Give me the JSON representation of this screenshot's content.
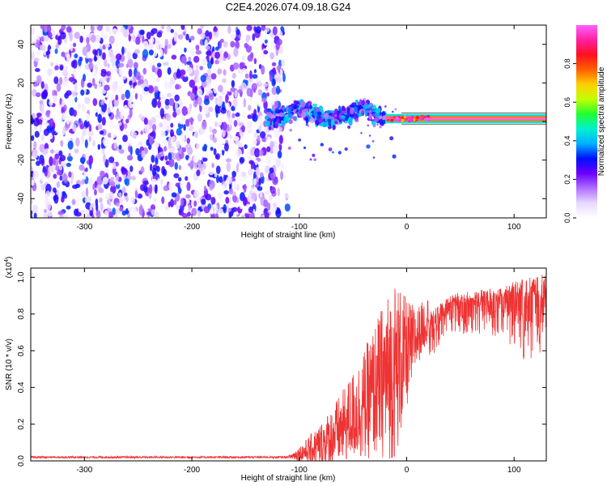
{
  "figure_title": "C2E4.2026.074.09.18.G24",
  "chart_data": [
    {
      "type": "heatmap",
      "xlabel": "Height of straight line (km)",
      "ylabel": "Frequency (Hz)",
      "xlim": [
        -350,
        130
      ],
      "ylim": [
        -50,
        50
      ],
      "x_ticks": [
        -300,
        -200,
        -100,
        0,
        100
      ],
      "y_ticks": [
        -40,
        -20,
        0,
        20,
        40
      ],
      "colorbar": {
        "label": "Normalized spectral amplitude",
        "range": [
          0,
          1
        ],
        "ticks": [
          0.0,
          0.2,
          0.4,
          0.6,
          0.8
        ],
        "colors": [
          "#ffffff",
          "#e8d8ff",
          "#b070ff",
          "#6a00ff",
          "#0010ff",
          "#00b0ff",
          "#00f0d0",
          "#20ff30",
          "#c0ff00",
          "#ffd000",
          "#ff6000",
          "#ff1020",
          "#ff20a0",
          "#ff60ff"
        ]
      },
      "regions": [
        {
          "name": "noise",
          "x_range": [
            -350,
            -115
          ],
          "freq_range": [
            -50,
            50
          ],
          "amplitude_range": [
            0.0,
            0.15
          ]
        },
        {
          "name": "signal_onset",
          "x_range": [
            -130,
            -20
          ],
          "freq_center": 2,
          "freq_spread": 8,
          "amplitude_range": [
            0.1,
            0.4
          ]
        },
        {
          "name": "stable_signal",
          "x_range": [
            -20,
            130
          ],
          "freq_center": 1.5,
          "freq_spread": 1.5,
          "amplitude_range": [
            0.8,
            1.0
          ]
        }
      ]
    },
    {
      "type": "line",
      "xlabel": "Height of straight line (km)",
      "ylabel": "SNR (10 * v/v)",
      "y_scale_label": "(x10",
      "y_scale_exponent": "4",
      "y_scale_close": ")",
      "xlim": [
        -350,
        130
      ],
      "ylim": [
        0,
        1.05
      ],
      "x_ticks": [
        -300,
        -200,
        -100,
        0,
        100
      ],
      "y_ticks": [
        0.0,
        0.2,
        0.4,
        0.6,
        0.8,
        1.0
      ],
      "color": "#ee3333",
      "series": [
        {
          "name": "SNR",
          "x": [
            -350,
            -300,
            -250,
            -200,
            -150,
            -110,
            -100,
            -90,
            -80,
            -70,
            -60,
            -50,
            -40,
            -30,
            -20,
            -10,
            0,
            10,
            20,
            30,
            40,
            50,
            60,
            70,
            80,
            90,
            100,
            110,
            120,
            130
          ],
          "values": [
            0.02,
            0.02,
            0.02,
            0.02,
            0.02,
            0.02,
            0.04,
            0.06,
            0.09,
            0.13,
            0.18,
            0.25,
            0.3,
            0.38,
            0.45,
            0.5,
            0.58,
            0.68,
            0.78,
            0.85,
            0.88,
            0.9,
            0.9,
            0.91,
            0.92,
            0.93,
            0.94,
            0.95,
            0.96,
            0.97
          ],
          "noise_amplitude": [
            0.005,
            0.005,
            0.005,
            0.005,
            0.005,
            0.005,
            0.02,
            0.04,
            0.06,
            0.08,
            0.1,
            0.12,
            0.15,
            0.18,
            0.22,
            0.25,
            0.15,
            0.08,
            0.06,
            0.05,
            0.05,
            0.05,
            0.05,
            0.05,
            0.06,
            0.06,
            0.08,
            0.1,
            0.1,
            0.1
          ]
        }
      ]
    }
  ]
}
